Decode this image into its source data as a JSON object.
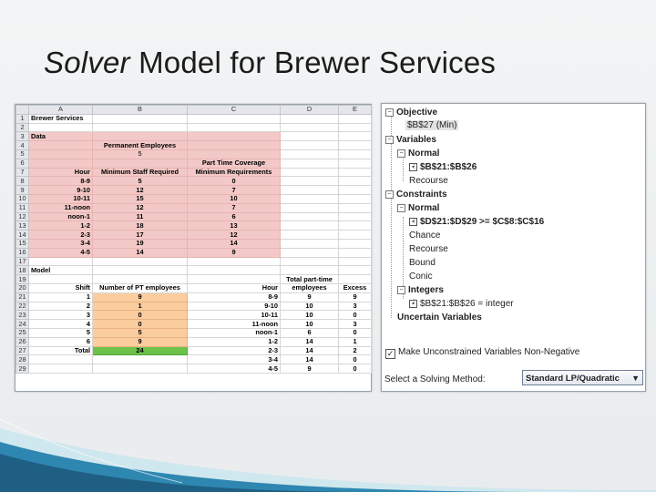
{
  "title": {
    "italic": "Solver",
    "rest": " Model for Brewer Services"
  },
  "sheet": {
    "col_headers": [
      "A",
      "B",
      "C",
      "D",
      "E"
    ],
    "rows": [
      {
        "n": "1",
        "a": "Brewer Services",
        "b": "",
        "c": "",
        "d": "",
        "e": ""
      },
      {
        "n": "2",
        "a": "",
        "b": "",
        "c": "",
        "d": "",
        "e": ""
      },
      {
        "n": "3",
        "a": "Data",
        "b": "",
        "c": "",
        "d": "",
        "e": ""
      },
      {
        "n": "4",
        "a": "",
        "b": "Permanent Employees",
        "c": "",
        "d": "",
        "e": ""
      },
      {
        "n": "5",
        "a": "",
        "b": "5",
        "c": "",
        "d": "",
        "e": ""
      },
      {
        "n": "6",
        "a": "",
        "b": "",
        "c": "Part Time Coverage",
        "d": "",
        "e": ""
      },
      {
        "n": "7",
        "a": "Hour",
        "b": "Minimum Staff Required",
        "c": "Minimum Requirements",
        "d": "",
        "e": ""
      },
      {
        "n": "8",
        "a": "8-9",
        "b": "5",
        "c": "0",
        "d": "",
        "e": ""
      },
      {
        "n": "9",
        "a": "9-10",
        "b": "12",
        "c": "7",
        "d": "",
        "e": ""
      },
      {
        "n": "10",
        "a": "10-11",
        "b": "15",
        "c": "10",
        "d": "",
        "e": ""
      },
      {
        "n": "11",
        "a": "11-noon",
        "b": "12",
        "c": "7",
        "d": "",
        "e": ""
      },
      {
        "n": "12",
        "a": "noon-1",
        "b": "11",
        "c": "6",
        "d": "",
        "e": ""
      },
      {
        "n": "13",
        "a": "1-2",
        "b": "18",
        "c": "13",
        "d": "",
        "e": ""
      },
      {
        "n": "14",
        "a": "2-3",
        "b": "17",
        "c": "12",
        "d": "",
        "e": ""
      },
      {
        "n": "15",
        "a": "3-4",
        "b": "19",
        "c": "14",
        "d": "",
        "e": ""
      },
      {
        "n": "16",
        "a": "4-5",
        "b": "14",
        "c": "9",
        "d": "",
        "e": ""
      },
      {
        "n": "17",
        "a": "",
        "b": "",
        "c": "",
        "d": "",
        "e": ""
      },
      {
        "n": "18",
        "a": "Model",
        "b": "",
        "c": "",
        "d": "",
        "e": ""
      },
      {
        "n": "19",
        "a": "",
        "b": "",
        "c": "",
        "d": "Total part-time",
        "e": ""
      },
      {
        "n": "20",
        "a": "Shift",
        "b": "Number of PT employees",
        "c": "Hour",
        "d": "employees",
        "e": "Excess"
      },
      {
        "n": "21",
        "a": "1",
        "b": "9",
        "c": "8-9",
        "d": "9",
        "e": "9"
      },
      {
        "n": "22",
        "a": "2",
        "b": "1",
        "c": "9-10",
        "d": "10",
        "e": "3"
      },
      {
        "n": "23",
        "a": "3",
        "b": "0",
        "c": "10-11",
        "d": "10",
        "e": "0"
      },
      {
        "n": "24",
        "a": "4",
        "b": "0",
        "c": "11-noon",
        "d": "10",
        "e": "3"
      },
      {
        "n": "25",
        "a": "5",
        "b": "5",
        "c": "noon-1",
        "d": "6",
        "e": "0"
      },
      {
        "n": "26",
        "a": "6",
        "b": "9",
        "c": "1-2",
        "d": "14",
        "e": "1"
      },
      {
        "n": "27",
        "a": "Total",
        "b": "24",
        "c": "2-3",
        "d": "14",
        "e": "2"
      },
      {
        "n": "28",
        "a": "",
        "b": "",
        "c": "3-4",
        "d": "14",
        "e": "0"
      },
      {
        "n": "29",
        "a": "",
        "b": "",
        "c": "4-5",
        "d": "9",
        "e": "0"
      }
    ]
  },
  "solver": {
    "objective": "Objective",
    "objective_cell": "$B$27 (Min)",
    "variables": "Variables",
    "var_normal": "Normal",
    "var_range": "$B$21:$B$26",
    "var_recourse": "Recourse",
    "constraints": "Constraints",
    "con_normal": "Normal",
    "con_rule": "$D$21:$D$29 >= $C$8:$C$16",
    "chance": "Chance",
    "recourse": "Recourse",
    "bound": "Bound",
    "conic": "Conic",
    "integers": "Integers",
    "int_rule": "$B$21:$B$26 = integer",
    "uncertain": "Uncertain Variables",
    "checkbox_label": "Make Unconstrained Variables Non-Negative",
    "method_label": "Select a Solving Method:",
    "method_value": "Standard LP/Quadratic"
  }
}
